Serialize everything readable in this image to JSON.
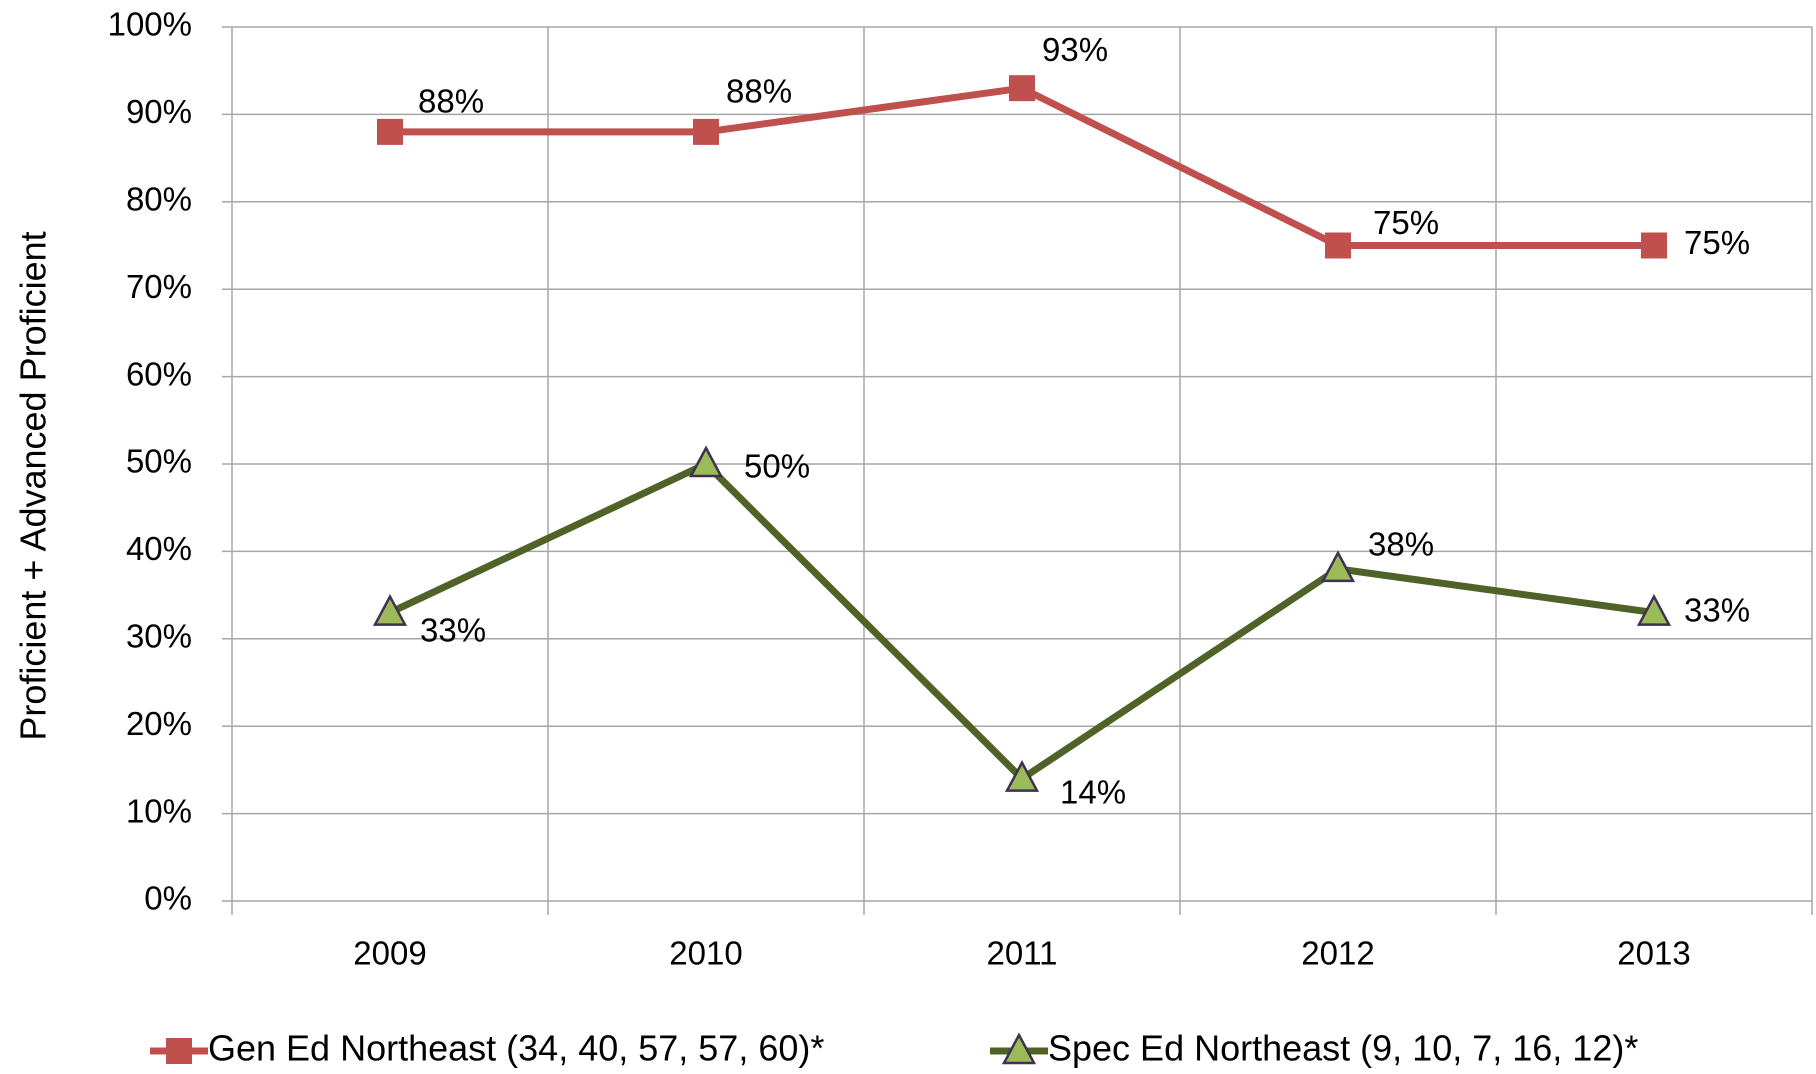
{
  "chart_data": {
    "type": "line",
    "y_label": "Proficient + Advanced Proficient",
    "categories": [
      "2009",
      "2010",
      "2011",
      "2012",
      "2013"
    ],
    "ylim": [
      0,
      100
    ],
    "yticks": [
      {
        "value": 0,
        "label": "0%"
      },
      {
        "value": 10,
        "label": "10%"
      },
      {
        "value": 20,
        "label": "20%"
      },
      {
        "value": 30,
        "label": "30%"
      },
      {
        "value": 40,
        "label": "40%"
      },
      {
        "value": 50,
        "label": "50%"
      },
      {
        "value": 60,
        "label": "60%"
      },
      {
        "value": 70,
        "label": "70%"
      },
      {
        "value": 80,
        "label": "80%"
      },
      {
        "value": 90,
        "label": "90%"
      },
      {
        "value": 100,
        "label": "100%"
      }
    ],
    "grid": true,
    "legend": "bottom",
    "series": [
      {
        "name": "Gen Ed Northeast (34, 40, 57, 57, 60)*",
        "color": "#c0504d",
        "marker": "square",
        "values": [
          88,
          88,
          93,
          75,
          75
        ],
        "value_labels": [
          "88%",
          "88%",
          "93%",
          "75%",
          "75%"
        ]
      },
      {
        "name": "Spec Ed Northeast  (9, 10, 7, 16, 12)*",
        "color": "#4f6228",
        "marker_color": "#9bbb59",
        "marker": "triangle",
        "values": [
          33,
          50,
          14,
          38,
          33
        ],
        "value_labels": [
          "33%",
          "50%",
          "14%",
          "38%",
          "33%"
        ]
      }
    ]
  }
}
